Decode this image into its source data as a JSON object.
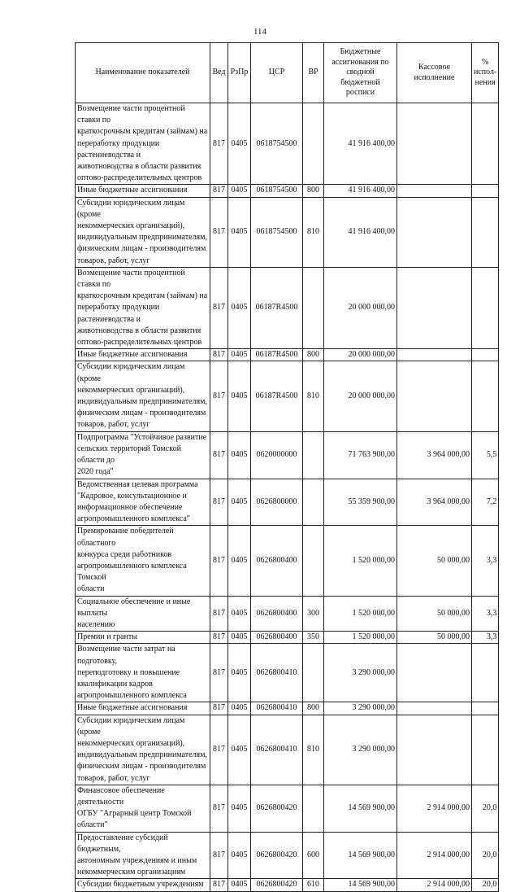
{
  "page_number": "114",
  "headers": [
    "Наименование показателей",
    "Вед",
    "РзПр",
    "ЦСР",
    "ВР",
    "Бюджетные ассигнования по сводной бюджетной росписи",
    "Кассовое исполнение",
    "% испол-нения"
  ],
  "rows": [
    {
      "name": "Возмещение части процентной ставки по\nкраткосрочным кредитам (займам) на\nпереработку продукции растениеводства и\nживотноводства в области развития\nоптово-распределительных центров",
      "ved": "817",
      "rzpr": "0405",
      "csr": "0618754500",
      "vr": "",
      "budget": "41 916 400,00",
      "cash": "",
      "pct": ""
    },
    {
      "name": "Иные бюджетные ассигнования",
      "ved": "817",
      "rzpr": "0405",
      "csr": "0618754500",
      "vr": "800",
      "budget": "41 916 400,00",
      "cash": "",
      "pct": ""
    },
    {
      "name": "Субсидии юридическим лицам (кроме\nнекоммерческих организаций),\nиндивидуальным предпринимателям,\nфизическим лицам - производителям\nтоваров, работ, услуг",
      "ved": "817",
      "rzpr": "0405",
      "csr": "0618754500",
      "vr": "810",
      "budget": "41 916 400,00",
      "cash": "",
      "pct": ""
    },
    {
      "name": "Возмещение части процентной ставки по\nкраткосрочным кредитам (займам) на\nпереработку продукции растениеводства и\nживотноводства в области развития\nоптово-распределительных центров",
      "ved": "817",
      "rzpr": "0405",
      "csr": "06187R4500",
      "vr": "",
      "budget": "20 000 000,00",
      "cash": "",
      "pct": ""
    },
    {
      "name": "Иные бюджетные ассигнования",
      "ved": "817",
      "rzpr": "0405",
      "csr": "06187R4500",
      "vr": "800",
      "budget": "20 000 000,00",
      "cash": "",
      "pct": ""
    },
    {
      "name": "Субсидии юридическим лицам (кроме\nнекоммерческих организаций),\nиндивидуальным предпринимателям,\nфизическим лицам - производителям\nтоваров, работ, услуг",
      "ved": "817",
      "rzpr": "0405",
      "csr": "06187R4500",
      "vr": "810",
      "budget": "20 000 000,00",
      "cash": "",
      "pct": ""
    },
    {
      "name": "Подпрограмма \"Устойчивое развитие\nсельских территорий Томской области до\n2020 года\"",
      "ved": "817",
      "rzpr": "0405",
      "csr": "0620000000",
      "vr": "",
      "budget": "71 763 900,00",
      "cash": "3 964 000,00",
      "pct": "5,5"
    },
    {
      "name": "Ведомственная целевая программа\n\"Кадровое, консультационное и\nинформационное обеспечение\nагропромышленного комплекса\"",
      "ved": "817",
      "rzpr": "0405",
      "csr": "0626800000",
      "vr": "",
      "budget": "55 359 900,00",
      "cash": "3 964 000,00",
      "pct": "7,2"
    },
    {
      "name": "Премирование победителей областного\nконкурса среди работников\nагропромышленного комплекса Томской\nобласти",
      "ved": "817",
      "rzpr": "0405",
      "csr": "0626800400",
      "vr": "",
      "budget": "1 520 000,00",
      "cash": "50 000,00",
      "pct": "3,3"
    },
    {
      "name": "Социальное обеспечение и иные выплаты\nнаселению",
      "ved": "817",
      "rzpr": "0405",
      "csr": "0626800400",
      "vr": "300",
      "budget": "1 520 000,00",
      "cash": "50 000,00",
      "pct": "3,3"
    },
    {
      "name": "Премии и гранты",
      "ved": "817",
      "rzpr": "0405",
      "csr": "0626800400",
      "vr": "350",
      "budget": "1 520 000,00",
      "cash": "50 000,00",
      "pct": "3,3"
    },
    {
      "name": "Возмещение части затрат на подготовку,\nпереподготовку и повышение\nквалификации кадров\nагропромышленного комплекса",
      "ved": "817",
      "rzpr": "0405",
      "csr": "0626800410",
      "vr": "",
      "budget": "3 290 000,00",
      "cash": "",
      "pct": ""
    },
    {
      "name": "Иные бюджетные ассигнования",
      "ved": "817",
      "rzpr": "0405",
      "csr": "0626800410",
      "vr": "800",
      "budget": "3 290 000,00",
      "cash": "",
      "pct": ""
    },
    {
      "name": "Субсидии юридическим лицам (кроме\nнекоммерческих организаций),\nиндивидуальным предпринимателям,\nфизическим лицам - производителям\nтоваров, работ, услуг",
      "ved": "817",
      "rzpr": "0405",
      "csr": "0626800410",
      "vr": "810",
      "budget": "3 290 000,00",
      "cash": "",
      "pct": ""
    },
    {
      "name": "Финансовое обеспечение деятельности\nОГБУ \"Аграрный центр Томской области\"",
      "ved": "817",
      "rzpr": "0405",
      "csr": "0626800420",
      "vr": "",
      "budget": "14 569 900,00",
      "cash": "2 914 000,00",
      "pct": "20,0"
    },
    {
      "name": "Предоставление субсидий бюджетным,\nавтономным учреждениям и иным\nнекоммерческим организациям",
      "ved": "817",
      "rzpr": "0405",
      "csr": "0626800420",
      "vr": "600",
      "budget": "14 569 900,00",
      "cash": "2 914 000,00",
      "pct": "20,0"
    },
    {
      "name": "Субсидии бюджетным учреждениям",
      "ved": "817",
      "rzpr": "0405",
      "csr": "0626800420",
      "vr": "610",
      "budget": "14 569 900,00",
      "cash": "2 914 000,00",
      "pct": "20,0"
    }
  ]
}
